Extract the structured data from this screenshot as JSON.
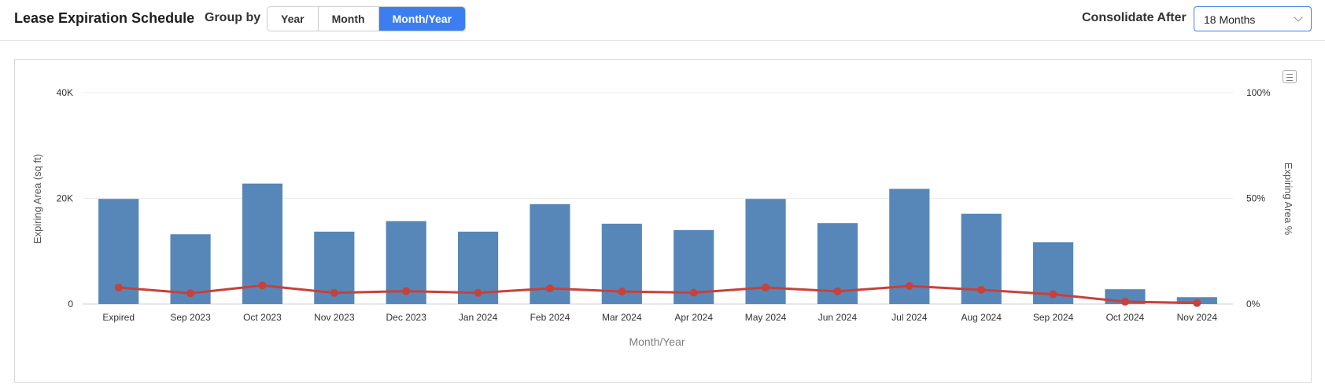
{
  "header": {
    "title": "Lease Expiration Schedule",
    "group_by_label": "Group by",
    "group_by_options": [
      {
        "label": "Year",
        "active": false
      },
      {
        "label": "Month",
        "active": false
      },
      {
        "label": "Month/Year",
        "active": true
      }
    ],
    "consolidate_label": "Consolidate After",
    "consolidate_value": "18 Months"
  },
  "colors": {
    "accent": "#3c7ef0",
    "bar": "#5787b8",
    "line": "#c8413a"
  },
  "chart_data": {
    "type": "bar",
    "categories": [
      "Expired",
      "Sep 2023",
      "Oct 2023",
      "Nov 2023",
      "Dec 2023",
      "Jan 2024",
      "Feb 2024",
      "Mar 2024",
      "Apr 2024",
      "May 2024",
      "Jun 2024",
      "Jul 2024",
      "Aug 2024",
      "Sep 2024",
      "Oct 2024",
      "Nov 2024"
    ],
    "series": [
      {
        "type": "bar",
        "axis": "left",
        "values": [
          19900,
          13200,
          22800,
          13700,
          15700,
          13700,
          18900,
          15200,
          14000,
          19900,
          15300,
          21800,
          17100,
          11700,
          2800,
          1300
        ]
      },
      {
        "type": "line",
        "axis": "right",
        "values": [
          7.8,
          5.1,
          8.8,
          5.3,
          6.1,
          5.3,
          7.4,
          5.9,
          5.4,
          7.8,
          6.0,
          8.5,
          6.7,
          4.6,
          1.1,
          0.5
        ]
      }
    ],
    "xlabel": "Month/Year",
    "ylabel": "Expiring Area (sq ft)",
    "y2label": "Expiring Area %",
    "ylim": [
      0,
      40000
    ],
    "y2lim": [
      0,
      100
    ],
    "yticks": [
      {
        "value": 0,
        "label": "0"
      },
      {
        "value": 20000,
        "label": "20K"
      },
      {
        "value": 40000,
        "label": "40K"
      }
    ],
    "y2ticks": [
      {
        "value": 0,
        "label": "0%"
      },
      {
        "value": 50,
        "label": "50%"
      },
      {
        "value": 100,
        "label": "100%"
      }
    ],
    "grid": true,
    "legend": "none"
  }
}
